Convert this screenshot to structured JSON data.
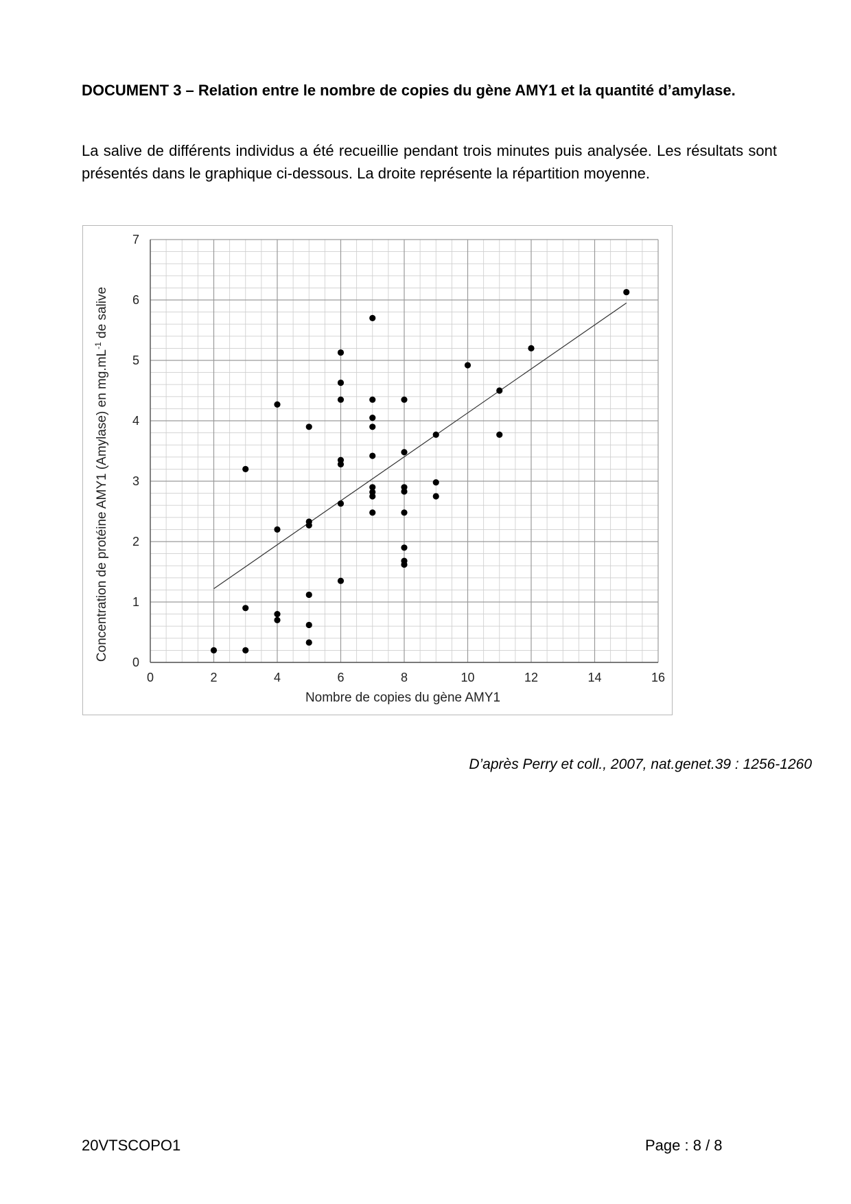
{
  "document": {
    "title": "DOCUMENT 3 – Relation entre le nombre de copies du gène AMY1 et la quantité d’amylase.",
    "intro": "La salive de différents individus a été recueillie pendant trois minutes puis analysée. Les résultats sont présentés dans le graphique ci-dessous. La droite représente la répartition moyenne.",
    "source": "D’après Perry et coll., 2007, nat.genet.39 : 1256-1260"
  },
  "footer": {
    "code": "20VTSCOPO1",
    "page": "Page : 8 / 8"
  },
  "chart_data": {
    "type": "scatter",
    "title": "",
    "xlabel": "Nombre de copies du gène AMY1",
    "ylabel_parts": {
      "before": "Concentration de protéine AMY1 (Amylase) en mg.mL",
      "sup": "-1",
      "after": " de salive"
    },
    "xlim": [
      0,
      16
    ],
    "ylim": [
      0,
      7
    ],
    "x_ticks": [
      "0",
      "2",
      "4",
      "6",
      "8",
      "10",
      "12",
      "14",
      "16"
    ],
    "y_ticks": [
      "0",
      "1",
      "2",
      "3",
      "4",
      "5",
      "6",
      "7"
    ],
    "grid": true,
    "point_color": "#000000",
    "points": [
      [
        2,
        0.2
      ],
      [
        3,
        0.2
      ],
      [
        3,
        0.9
      ],
      [
        3,
        3.2
      ],
      [
        4,
        0.7
      ],
      [
        4,
        0.8
      ],
      [
        4,
        2.2
      ],
      [
        4,
        4.27
      ],
      [
        5,
        0.33
      ],
      [
        5,
        0.62
      ],
      [
        5,
        1.12
      ],
      [
        5,
        2.27
      ],
      [
        5,
        2.33
      ],
      [
        5,
        3.9
      ],
      [
        6,
        1.35
      ],
      [
        6,
        2.63
      ],
      [
        6,
        3.28
      ],
      [
        6,
        3.35
      ],
      [
        6,
        4.35
      ],
      [
        6,
        4.63
      ],
      [
        6,
        5.13
      ],
      [
        7,
        2.48
      ],
      [
        7,
        2.75
      ],
      [
        7,
        2.82
      ],
      [
        7,
        2.9
      ],
      [
        7,
        3.42
      ],
      [
        7,
        3.9
      ],
      [
        7,
        4.05
      ],
      [
        7,
        4.35
      ],
      [
        7,
        5.7
      ],
      [
        8,
        1.62
      ],
      [
        8,
        1.68
      ],
      [
        8,
        1.9
      ],
      [
        8,
        2.48
      ],
      [
        8,
        2.83
      ],
      [
        8,
        2.9
      ],
      [
        8,
        3.48
      ],
      [
        8,
        4.35
      ],
      [
        9,
        2.75
      ],
      [
        9,
        2.98
      ],
      [
        9,
        3.77
      ],
      [
        10,
        4.92
      ],
      [
        11,
        3.77
      ],
      [
        11,
        4.5
      ],
      [
        12,
        5.2
      ],
      [
        15,
        6.13
      ]
    ],
    "trend_line": [
      [
        2,
        1.22
      ],
      [
        15,
        5.95
      ]
    ]
  }
}
